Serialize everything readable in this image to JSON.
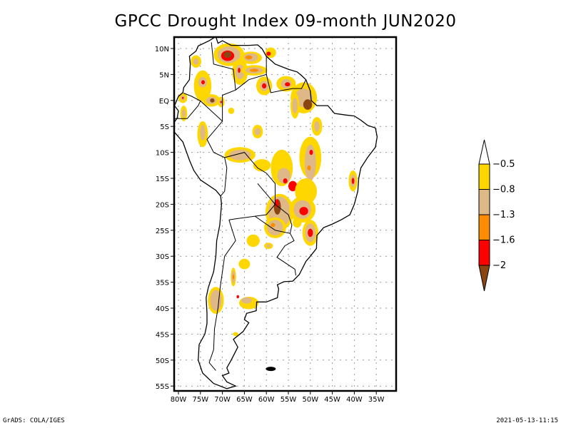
{
  "title": "GPCC Drought Index 09-month JUN2020",
  "map": {
    "region": "South America",
    "lon_range": [
      -80,
      -35
    ],
    "lat_range": [
      -55,
      10
    ],
    "lon_ticks": [
      "80W",
      "75W",
      "70W",
      "65W",
      "60W",
      "55W",
      "50W",
      "45W",
      "40W",
      "35W"
    ],
    "lat_ticks": [
      "10N",
      "5N",
      "EQ",
      "5S",
      "10S",
      "15S",
      "20S",
      "25S",
      "30S",
      "35S",
      "40S",
      "45S",
      "50S",
      "55S"
    ],
    "grid": "dotted"
  },
  "colorbar": {
    "levels": [
      "-0.5",
      "-0.8",
      "-1.3",
      "-1.6",
      "-2"
    ],
    "colors": {
      "above": "#ffffff",
      "band_05_08": "#ffd700",
      "band_08_13": "#deb887",
      "band_13_16": "#ff8c00",
      "band_16_2": "#ff0000",
      "below": "#8b4513"
    }
  },
  "footer": {
    "left": "GrADS: COLA/IGES",
    "right": "2021-05-13-11:15"
  }
}
